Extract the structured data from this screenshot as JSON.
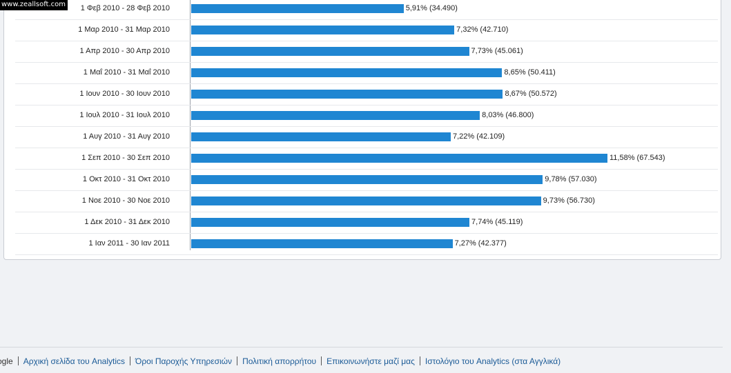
{
  "watermark": "www.zeallsoft.com",
  "chart_data": {
    "type": "bar",
    "orientation": "horizontal",
    "categories": [
      "1 Φεβ 2010 - 28 Φεβ 2010",
      "1 Μαρ 2010 - 31 Μαρ 2010",
      "1 Απρ 2010 - 30 Απρ 2010",
      "1 Μαΐ 2010 - 31 Μαΐ 2010",
      "1 Ιουν 2010 - 30 Ιουν 2010",
      "1 Ιουλ 2010 - 31 Ιουλ 2010",
      "1 Αυγ 2010 - 31 Αυγ 2010",
      "1 Σεπ 2010 - 30 Σεπ 2010",
      "1 Οκτ 2010 - 31 Οκτ 2010",
      "1 Νοε 2010 - 30 Νοε 2010",
      "1 Δεκ 2010 - 31 Δεκ 2010",
      "1 Ιαν 2011 - 30 Ιαν 2011"
    ],
    "percent": [
      5.91,
      7.32,
      7.73,
      8.65,
      8.67,
      8.03,
      7.22,
      11.58,
      9.78,
      9.73,
      7.74,
      7.27
    ],
    "values": [
      34490,
      42710,
      45061,
      50411,
      50572,
      46800,
      42109,
      67543,
      57030,
      56730,
      45119,
      42377
    ],
    "data_labels": [
      "5,91% (34.490)",
      "7,32% (42.710)",
      "7,73% (45.061)",
      "8,65% (50.411)",
      "8,67% (50.572)",
      "8,03% (46.800)",
      "7,22% (42.109)",
      "11,58% (67.543)",
      "9,78% (57.030)",
      "9,73% (56.730)",
      "7,74% (45.119)",
      "7,27% (42.377)"
    ],
    "bar_color": "#1f86d2",
    "grid": false
  },
  "footer": {
    "partial_left": "ogle",
    "links": [
      "Αρχική σελίδα του Analytics",
      "Όροι Παροχής Υπηρεσιών",
      "Πολιτική απορρήτου",
      "Επικοινωνήστε μαζί μας",
      "Ιστολόγιο του Analytics (στα Αγγλικά)"
    ]
  }
}
